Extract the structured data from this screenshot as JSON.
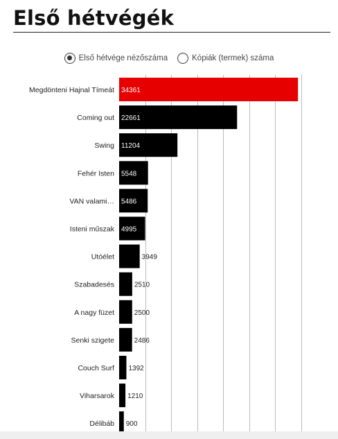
{
  "header": {
    "title": "Első hétvégék"
  },
  "toggle": {
    "options": [
      {
        "label": "Első hétvége nézőszáma",
        "selected": true
      },
      {
        "label": "Kópiák (termek) száma",
        "selected": false
      }
    ]
  },
  "colors": {
    "highlight": "#e60000",
    "bar": "#000000",
    "grid": "#bbbbbb",
    "label": "#222222"
  },
  "chart_data": {
    "type": "bar",
    "orientation": "horizontal",
    "categories": [
      "Megdönteni Hajnal Tímeát",
      "Coming out",
      "Swing",
      "Fehér Isten",
      "VAN valami…",
      "Isteni műszak",
      "Utóélet",
      "Szabadesés",
      "A nagy füzet",
      "Senki szigete",
      "Couch Surf",
      "Viharsarok",
      "Délibáb"
    ],
    "values": [
      34361,
      22661,
      11204,
      5548,
      5486,
      4995,
      3949,
      2510,
      2500,
      2486,
      1392,
      1210,
      900
    ],
    "data_labels": [
      "34361",
      "22661",
      "11204",
      "5548",
      "5486",
      "4995",
      "3949",
      "2510",
      "2500",
      "2486",
      "1392",
      "1210",
      "900"
    ],
    "highlight_index": 0,
    "xlim": [
      0,
      35000
    ],
    "grid": true,
    "title": "",
    "xlabel": "",
    "ylabel": ""
  }
}
